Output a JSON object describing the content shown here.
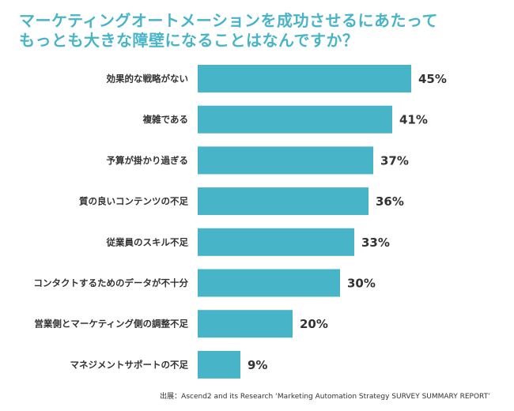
{
  "title": {
    "line1": "マーケティングオートメーションを成功させるにあたって",
    "line2": "もっとも大きな障壁になることはなんですか？"
  },
  "source": "出展：Ascend2 and its Research ‘Marketing Automation Strategy SURVEY SUMMARY REPORT’",
  "colors": {
    "bar": "#48b4c8",
    "title": "#48b4c8",
    "text": "#333333"
  },
  "chart_data": {
    "type": "bar",
    "orientation": "horizontal",
    "categories": [
      "効果的な戦略がない",
      "複雑である",
      "予算が掛かり過ぎる",
      "質の良いコンテンツの不足",
      "従業員のスキル不足",
      "コンタクトするためのデータが不十分",
      "営業側とマーケティング側の調整不足",
      "マネジメントサポートの不足"
    ],
    "values": [
      45,
      41,
      37,
      36,
      33,
      30,
      20,
      9
    ],
    "value_labels": [
      "45%",
      "41%",
      "37%",
      "36%",
      "33%",
      "30%",
      "20%",
      "9%"
    ],
    "unit": "%",
    "xlim": [
      0,
      45
    ],
    "grid": false,
    "legend": "none"
  }
}
